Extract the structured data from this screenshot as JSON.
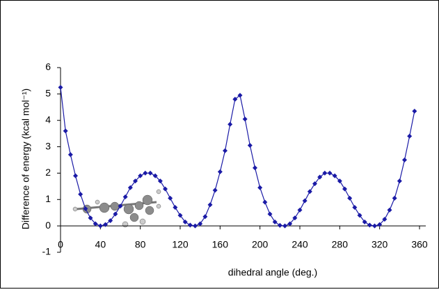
{
  "chart_data": {
    "type": "line",
    "x_label": "dihedral angle (deg.)",
    "y_label": "Difference of energy (kcal mol⁻¹)",
    "x": [
      0,
      5,
      10,
      15,
      20,
      25,
      30,
      35,
      40,
      45,
      50,
      55,
      60,
      65,
      70,
      75,
      80,
      85,
      90,
      95,
      100,
      105,
      110,
      115,
      120,
      125,
      130,
      135,
      140,
      145,
      150,
      155,
      160,
      165,
      170,
      175,
      180,
      185,
      190,
      195,
      200,
      205,
      210,
      215,
      220,
      225,
      230,
      235,
      240,
      245,
      250,
      255,
      260,
      265,
      270,
      275,
      280,
      285,
      290,
      295,
      300,
      305,
      310,
      315,
      320,
      325,
      330,
      335,
      340,
      345,
      350,
      355
    ],
    "series": [
      {
        "color": "#1a1aa6",
        "values": [
          5.25,
          3.6,
          2.7,
          1.9,
          1.2,
          0.65,
          0.3,
          0.08,
          0.0,
          0.05,
          0.2,
          0.45,
          0.75,
          1.1,
          1.45,
          1.7,
          1.9,
          2.0,
          2.0,
          1.9,
          1.7,
          1.4,
          1.05,
          0.7,
          0.4,
          0.15,
          0.03,
          0.0,
          0.08,
          0.35,
          0.8,
          1.35,
          2.05,
          2.85,
          3.85,
          4.8,
          4.95,
          4.05,
          3.05,
          2.2,
          1.45,
          0.9,
          0.45,
          0.15,
          0.02,
          0.0,
          0.08,
          0.3,
          0.6,
          0.95,
          1.3,
          1.6,
          1.85,
          2.0,
          2.0,
          1.9,
          1.7,
          1.4,
          1.05,
          0.7,
          0.4,
          0.15,
          0.03,
          0.0,
          0.05,
          0.25,
          0.6,
          1.05,
          1.7,
          2.5,
          3.4,
          4.35
        ]
      }
    ],
    "xlim": [
      0,
      360
    ],
    "xticks": [
      0,
      40,
      80,
      120,
      160,
      200,
      240,
      280,
      320,
      360
    ],
    "ylim": [
      -1,
      6
    ],
    "yticks": [
      -1,
      0,
      1,
      2,
      3,
      4,
      5,
      6
    ],
    "grid": false
  }
}
